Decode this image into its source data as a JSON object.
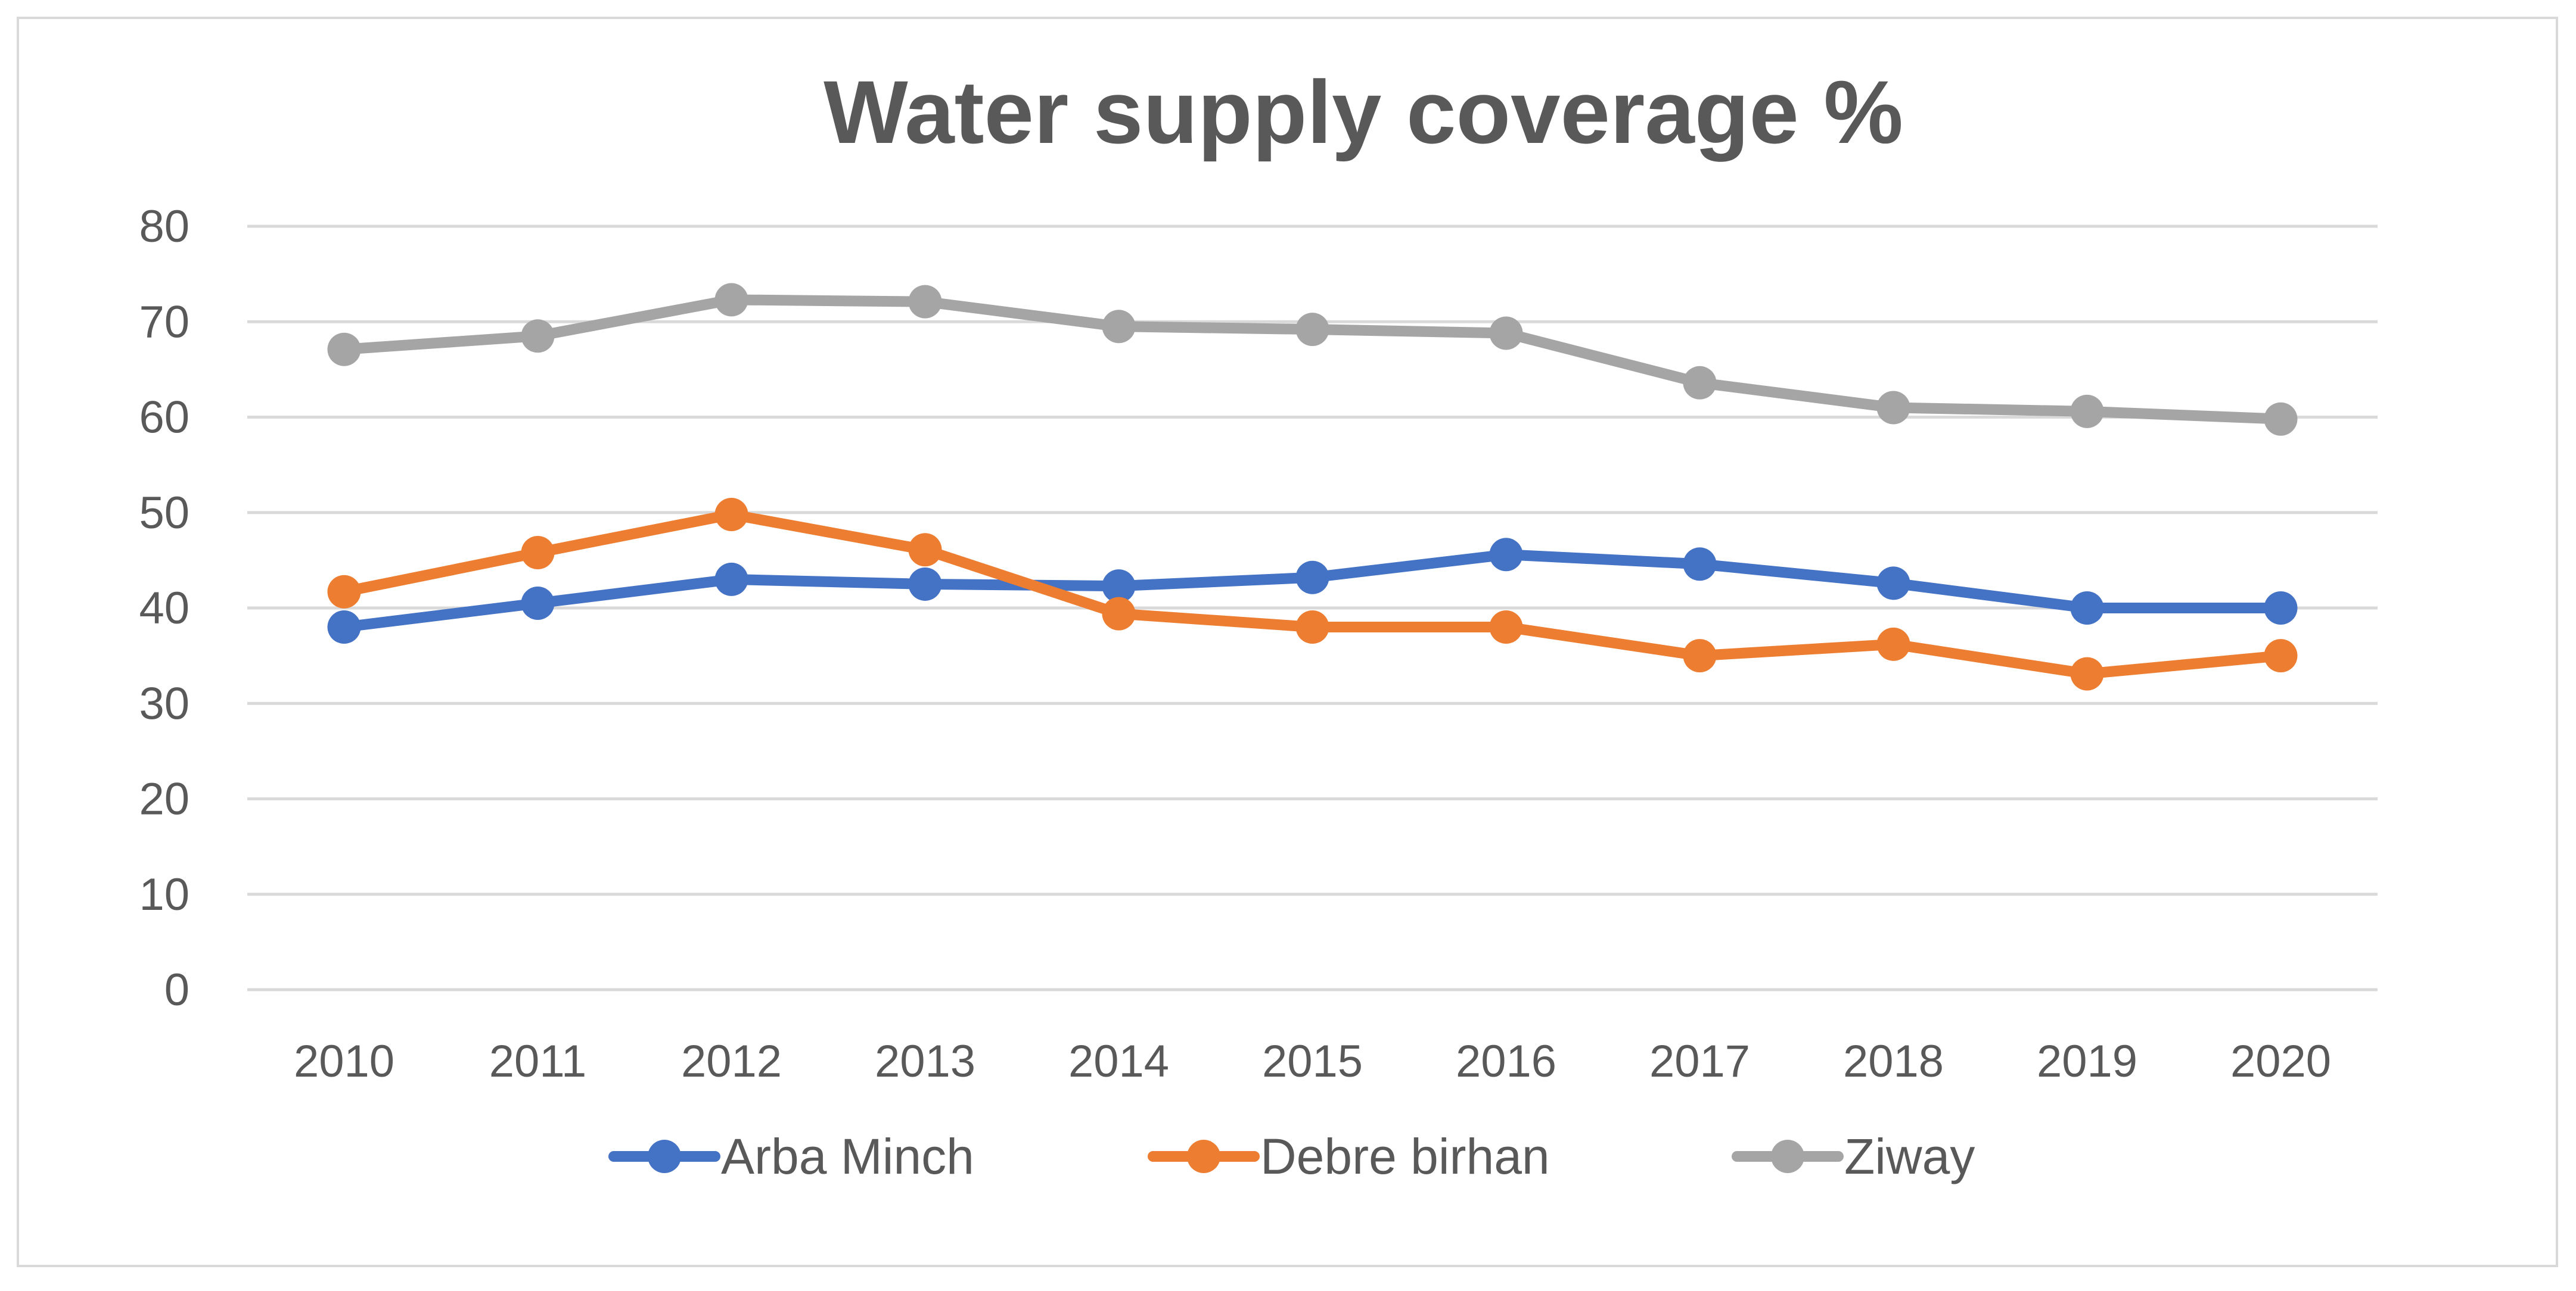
{
  "chart_data": {
    "type": "line",
    "title": "Water supply coverage %",
    "xlabel": "",
    "ylabel": "",
    "categories": [
      "2010",
      "2011",
      "2012",
      "2013",
      "2014",
      "2015",
      "2016",
      "2017",
      "2018",
      "2019",
      "2020"
    ],
    "ylim": [
      0,
      80
    ],
    "yticks": [
      0,
      10,
      20,
      30,
      40,
      50,
      60,
      70,
      80
    ],
    "grid": true,
    "legend_position": "bottom",
    "series": [
      {
        "name": "Arba Minch",
        "color": "#4472c4",
        "values": [
          38,
          40.5,
          43,
          42.5,
          42.3,
          43.2,
          45.6,
          44.6,
          42.6,
          40,
          40
        ]
      },
      {
        "name": "Debre birhan",
        "color": "#ed7d31",
        "values": [
          41.7,
          45.8,
          49.8,
          46.1,
          39.4,
          38,
          38,
          35,
          36.2,
          33.1,
          35
        ]
      },
      {
        "name": "Ziway",
        "color": "#a5a5a5",
        "values": [
          67.1,
          68.5,
          72.3,
          72.1,
          69.5,
          69.2,
          68.8,
          63.6,
          61,
          60.6,
          59.8
        ]
      }
    ]
  }
}
